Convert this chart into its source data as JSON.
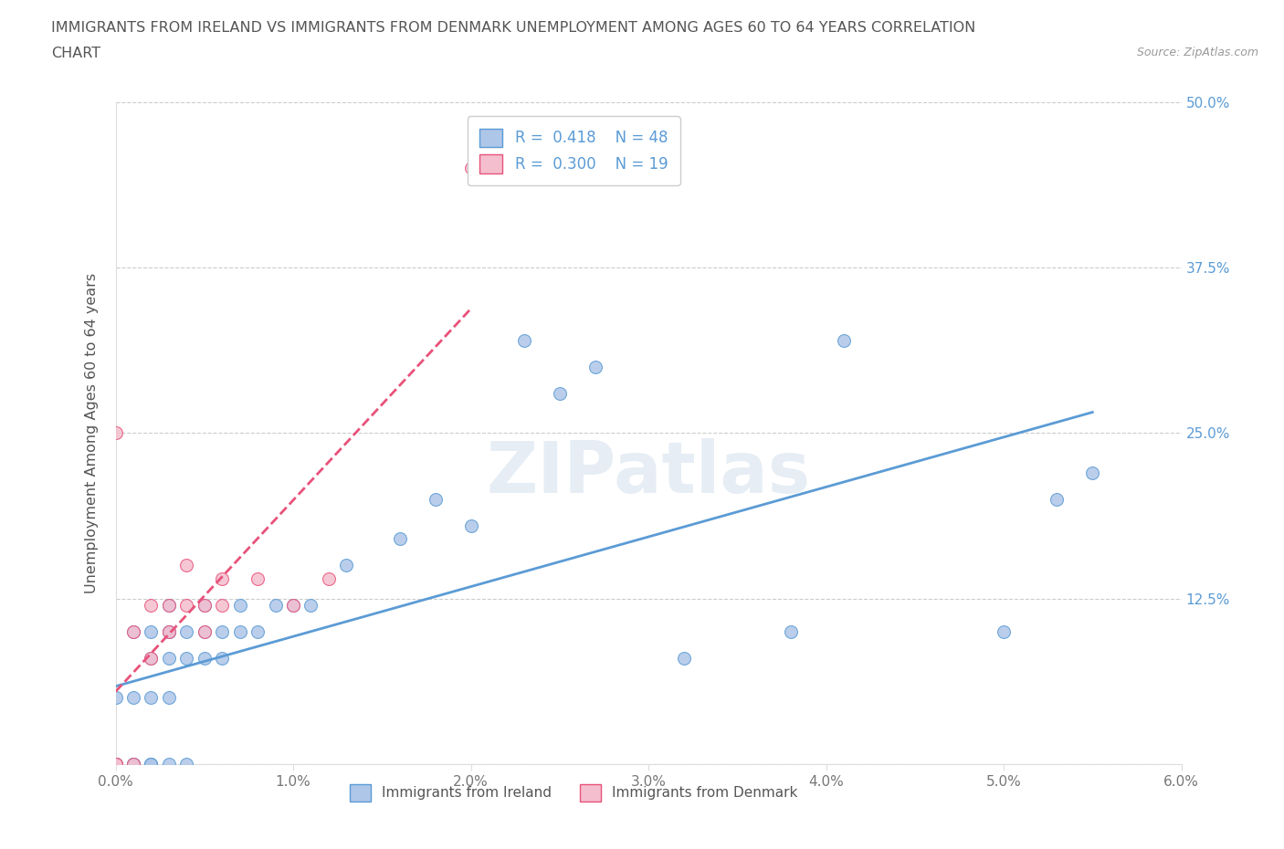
{
  "title_line1": "IMMIGRANTS FROM IRELAND VS IMMIGRANTS FROM DENMARK UNEMPLOYMENT AMONG AGES 60 TO 64 YEARS CORRELATION",
  "title_line2": "CHART",
  "source_text": "Source: ZipAtlas.com",
  "ylabel": "Unemployment Among Ages 60 to 64 years",
  "xlim": [
    0.0,
    0.06
  ],
  "ylim": [
    0.0,
    0.5
  ],
  "xticks": [
    0.0,
    0.01,
    0.02,
    0.03,
    0.04,
    0.05,
    0.06
  ],
  "xticklabels": [
    "0.0%",
    "1.0%",
    "2.0%",
    "3.0%",
    "4.0%",
    "5.0%",
    "6.0%"
  ],
  "yticks": [
    0.0,
    0.125,
    0.25,
    0.375,
    0.5
  ],
  "yticklabels": [
    "",
    "12.5%",
    "25.0%",
    "37.5%",
    "50.0%"
  ],
  "ireland_color": "#aec6e8",
  "ireland_color_line": "#5b9bd5",
  "denmark_color": "#f4bece",
  "denmark_color_line": "#e8527a",
  "ireland_R": 0.418,
  "ireland_N": 48,
  "denmark_R": 0.3,
  "denmark_N": 19,
  "watermark": "ZIPatlas",
  "background_color": "#ffffff",
  "grid_color": "#cccccc",
  "ireland_x": [
    0.0,
    0.0,
    0.0,
    0.0,
    0.001,
    0.001,
    0.001,
    0.001,
    0.001,
    0.002,
    0.002,
    0.002,
    0.002,
    0.002,
    0.002,
    0.003,
    0.003,
    0.003,
    0.003,
    0.003,
    0.003,
    0.004,
    0.004,
    0.004,
    0.005,
    0.005,
    0.005,
    0.006,
    0.006,
    0.007,
    0.007,
    0.008,
    0.009,
    0.01,
    0.011,
    0.013,
    0.016,
    0.018,
    0.02,
    0.023,
    0.025,
    0.027,
    0.032,
    0.038,
    0.041,
    0.05,
    0.053,
    0.055
  ],
  "ireland_y": [
    0.0,
    0.0,
    0.0,
    0.05,
    0.0,
    0.0,
    0.0,
    0.05,
    0.1,
    0.0,
    0.0,
    0.0,
    0.05,
    0.08,
    0.1,
    0.0,
    0.05,
    0.08,
    0.1,
    0.1,
    0.12,
    0.0,
    0.08,
    0.1,
    0.08,
    0.1,
    0.12,
    0.08,
    0.1,
    0.1,
    0.12,
    0.1,
    0.12,
    0.12,
    0.12,
    0.15,
    0.17,
    0.2,
    0.18,
    0.32,
    0.28,
    0.3,
    0.08,
    0.1,
    0.32,
    0.1,
    0.2,
    0.22
  ],
  "denmark_x": [
    0.0,
    0.0,
    0.0,
    0.001,
    0.001,
    0.002,
    0.002,
    0.003,
    0.003,
    0.004,
    0.004,
    0.005,
    0.005,
    0.006,
    0.006,
    0.008,
    0.01,
    0.012,
    0.02
  ],
  "denmark_y": [
    0.0,
    0.0,
    0.25,
    0.0,
    0.1,
    0.08,
    0.12,
    0.1,
    0.12,
    0.12,
    0.15,
    0.1,
    0.12,
    0.12,
    0.14,
    0.14,
    0.12,
    0.14,
    0.45
  ]
}
